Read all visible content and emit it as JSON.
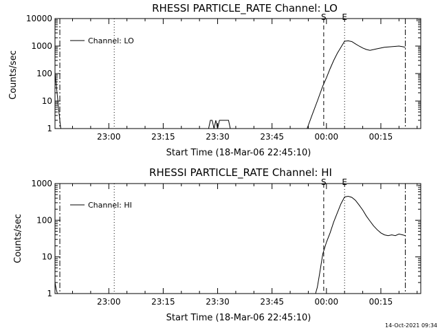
{
  "footer_timestamp": "14-Oct-2021 09:34",
  "colors": {
    "background": "#ffffff",
    "foreground": "#000000"
  },
  "chart_data": [
    {
      "type": "line",
      "title": "RHESSI PARTICLE_RATE Channel: LO",
      "xlabel": "Start Time (18-Mar-06 22:45:10)",
      "ylabel": "Counts/sec",
      "yscale": "log",
      "ylim": [
        1,
        10000
      ],
      "ytick_labels": [
        "1",
        "10",
        "100",
        "1000",
        "10000"
      ],
      "ytick_values": [
        1,
        10,
        100,
        1000,
        10000
      ],
      "xlim": [
        "22:45:10",
        "00:26:00"
      ],
      "xtick_labels": [
        "23:00",
        "23:15",
        "23:30",
        "23:45",
        "00:00",
        "00:15"
      ],
      "xtick_values": [
        "23:00",
        "23:15",
        "23:30",
        "23:45",
        "00:00",
        "00:15"
      ],
      "legend": {
        "entries": [
          "Channel: LO"
        ],
        "placement": "top-left"
      },
      "grid": false,
      "markers": [
        {
          "label": "S",
          "time": "23:59:15",
          "style": "dashed"
        },
        {
          "label": "E",
          "time": "00:05:00",
          "style": "dotted"
        },
        {
          "label": "",
          "time": "23:01:30",
          "style": "dotted"
        },
        {
          "label": "",
          "time": "22:46:30",
          "style": "dashdot"
        },
        {
          "label": "",
          "time": "00:21:45",
          "style": "dashdot"
        }
      ],
      "series": [
        {
          "x": [
            "22:45:10",
            "22:45:30",
            "22:45:50",
            "22:46:10",
            "22:46:30",
            "22:46:45",
            "23:27:30",
            "23:28:00",
            "23:28:30",
            "23:29:00",
            "23:29:30",
            "23:30:00",
            "23:30:30",
            "23:31:00",
            "23:33:00",
            "23:33:30",
            "23:54:40",
            "23:56:00",
            "23:57:30",
            "23:59:00",
            "00:00:00",
            "00:01:00",
            "00:02:00",
            "00:03:00",
            "00:04:00",
            "00:05:00",
            "00:06:00",
            "00:07:00",
            "00:08:00",
            "00:09:00",
            "00:10:00",
            "00:11:00",
            "00:12:00",
            "00:14:00",
            "00:16:00",
            "00:18:00",
            "00:20:00",
            "00:21:00",
            "00:21:45"
          ],
          "y": [
            100,
            40,
            15,
            5,
            2,
            1,
            1,
            2,
            2,
            1,
            2,
            1,
            2,
            2,
            2,
            1,
            1,
            3,
            10,
            35,
            70,
            150,
            300,
            550,
            900,
            1500,
            1550,
            1450,
            1200,
            1000,
            850,
            750,
            700,
            800,
            900,
            950,
            1000,
            950,
            900
          ]
        }
      ]
    },
    {
      "type": "line",
      "title": "RHESSI PARTICLE_RATE Channel: HI",
      "xlabel": "Start Time (18-Mar-06 22:45:10)",
      "ylabel": "Counts/sec",
      "yscale": "log",
      "ylim": [
        1,
        1000
      ],
      "ytick_labels": [
        "1",
        "10",
        "100",
        "1000"
      ],
      "ytick_values": [
        1,
        10,
        100,
        1000
      ],
      "xlim": [
        "22:45:10",
        "00:26:00"
      ],
      "xtick_labels": [
        "23:00",
        "23:15",
        "23:30",
        "23:45",
        "00:00",
        "00:15"
      ],
      "xtick_values": [
        "23:00",
        "23:15",
        "23:30",
        "23:45",
        "00:00",
        "00:15"
      ],
      "legend": {
        "entries": [
          "Channel: HI"
        ],
        "placement": "top-left"
      },
      "grid": false,
      "markers": [
        {
          "label": "S",
          "time": "23:59:15",
          "style": "dashed"
        },
        {
          "label": "E",
          "time": "00:05:00",
          "style": "dotted"
        },
        {
          "label": "",
          "time": "23:01:30",
          "style": "dotted"
        },
        {
          "label": "",
          "time": "22:46:30",
          "style": "dashdot"
        },
        {
          "label": "",
          "time": "00:21:45",
          "style": "dashdot"
        }
      ],
      "series": [
        {
          "x": [
            "22:45:10",
            "22:45:30",
            "22:45:50",
            "23:57:00",
            "23:57:30",
            "23:58:00",
            "23:58:30",
            "23:59:00",
            "00:00:00",
            "00:01:00",
            "00:02:00",
            "00:03:00",
            "00:04:00",
            "00:05:00",
            "00:06:00",
            "00:07:00",
            "00:08:00",
            "00:09:00",
            "00:10:00",
            "00:11:00",
            "00:12:00",
            "00:13:00",
            "00:14:00",
            "00:15:00",
            "00:16:00",
            "00:17:00",
            "00:18:00",
            "00:19:00",
            "00:20:00",
            "00:21:00",
            "00:21:45"
          ],
          "y": [
            2,
            1.3,
            1,
            1,
            1.5,
            3,
            6,
            12,
            25,
            45,
            90,
            160,
            280,
            430,
            450,
            420,
            350,
            260,
            190,
            130,
            95,
            70,
            55,
            45,
            40,
            38,
            40,
            38,
            42,
            40,
            38
          ]
        }
      ]
    }
  ]
}
